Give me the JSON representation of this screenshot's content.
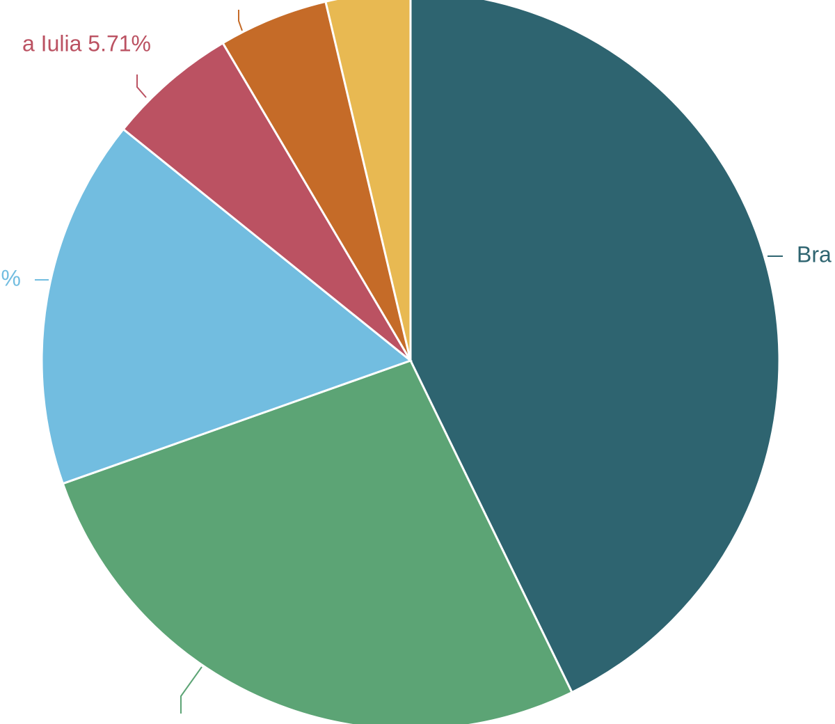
{
  "chart_data": {
    "type": "pie",
    "categories": [
      "Bra",
      null,
      "%",
      "a Iulia 5.71%",
      null,
      null
    ],
    "values": [
      42.79,
      26.8,
      16.2,
      5.71,
      4.8,
      3.7
    ],
    "colors": [
      "#2e6470",
      "#5ca475",
      "#72bde0",
      "#bb5262",
      "#c56b28",
      "#e8b952"
    ]
  }
}
